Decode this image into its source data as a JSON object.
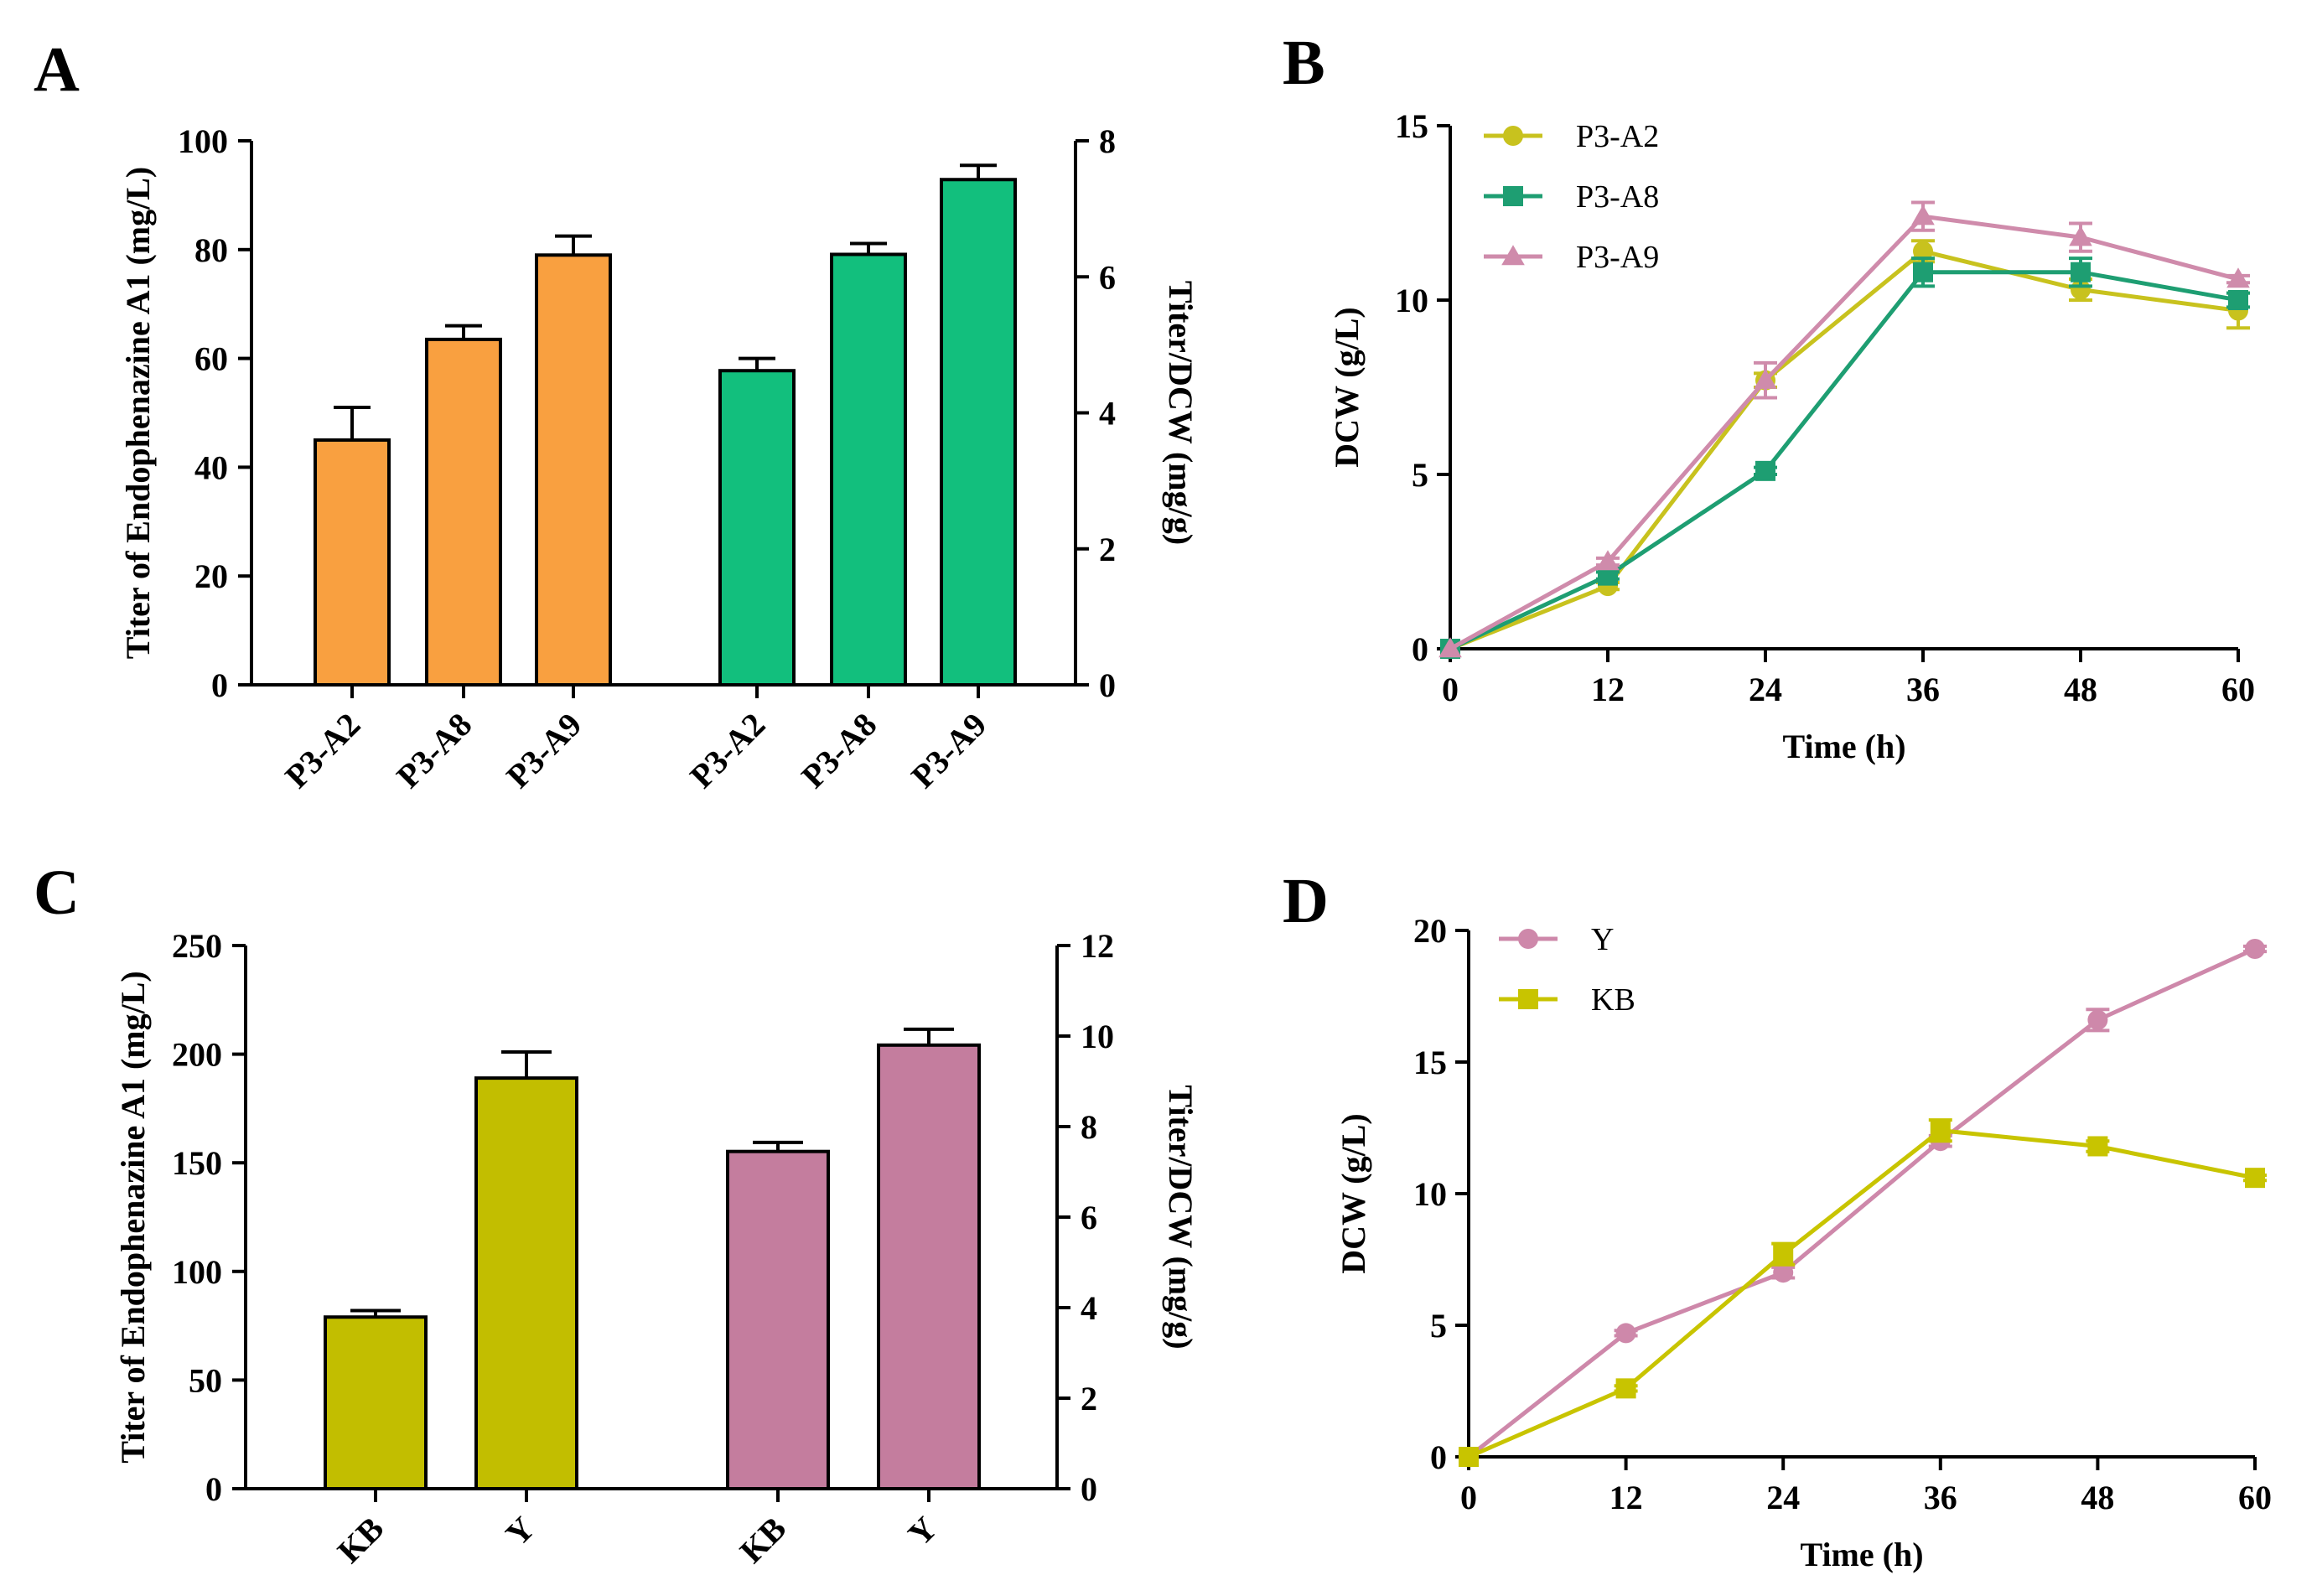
{
  "colors": {
    "orange": "#F9A040",
    "green": "#12BF7D",
    "olive": "#C2BE00",
    "mauve": "#C47D9E",
    "line_yellow": "#C8C21E",
    "line_green": "#1E9E72",
    "line_pink": "#CF8BAB",
    "d_pink": "#CE88AA",
    "d_yellow": "#C8C400"
  },
  "chart_data": [
    {
      "panel": "A",
      "type": "bar",
      "ylabel_left": "Titer of Endophenazine A1 (mg/L)",
      "ylabel_right": "Titer/DCW (mg/g)",
      "left_axis": {
        "range": [
          0,
          100
        ],
        "ticks": [
          "0",
          "20",
          "40",
          "60",
          "80",
          "100"
        ]
      },
      "right_axis": {
        "range": [
          0,
          8
        ],
        "ticks": [
          "0",
          "2",
          "4",
          "6",
          "8"
        ]
      },
      "series": [
        {
          "name": "Titer",
          "axis": "left",
          "color_key": "orange",
          "categories": [
            "P3-A2",
            "P3-A8",
            "P3-A9"
          ],
          "values": [
            45,
            63.5,
            79
          ],
          "errors": [
            6,
            2.5,
            3.5
          ]
        },
        {
          "name": "Titer/DCW",
          "axis": "right",
          "color_key": "green",
          "categories": [
            "P3-A2",
            "P3-A8",
            "P3-A9"
          ],
          "values": [
            4.62,
            6.33,
            7.43
          ],
          "errors": [
            0.18,
            0.16,
            0.21
          ]
        }
      ]
    },
    {
      "panel": "B",
      "type": "line",
      "xlabel": "Time (h)",
      "ylabel": "DCW (g/L)",
      "x_axis": {
        "range": [
          0,
          60
        ],
        "ticks": [
          "0",
          "12",
          "24",
          "36",
          "48",
          "60"
        ]
      },
      "y_axis": {
        "range": [
          0,
          15
        ],
        "ticks": [
          "0",
          "5",
          "10",
          "15"
        ]
      },
      "legend": "top-left",
      "x": [
        0,
        12,
        24,
        36,
        48,
        60
      ],
      "series": [
        {
          "name": "P3-A2",
          "marker": "circle",
          "color_key": "line_yellow",
          "values": [
            0,
            1.8,
            7.7,
            11.4,
            10.3,
            9.7
          ],
          "errors": [
            0,
            0.1,
            0.2,
            0.3,
            0.3,
            0.5
          ]
        },
        {
          "name": "P3-A8",
          "marker": "square",
          "color_key": "line_green",
          "values": [
            0,
            2.1,
            5.1,
            10.8,
            10.8,
            10.0
          ],
          "errors": [
            0,
            0.1,
            0.1,
            0.4,
            0.4,
            0.2
          ]
        },
        {
          "name": "P3-A9",
          "marker": "triangle",
          "color_key": "line_pink",
          "values": [
            0,
            2.5,
            7.7,
            12.4,
            11.8,
            10.6
          ],
          "errors": [
            0,
            0.1,
            0.5,
            0.4,
            0.4,
            0.1
          ]
        }
      ]
    },
    {
      "panel": "C",
      "type": "bar",
      "ylabel_left": "Titer of Endophenazine A1 (mg/L)",
      "ylabel_right": "Titer/DCW (mg/g)",
      "left_axis": {
        "range": [
          0,
          250
        ],
        "ticks": [
          "0",
          "50",
          "100",
          "150",
          "200",
          "250"
        ]
      },
      "right_axis": {
        "range": [
          0,
          12
        ],
        "ticks": [
          "0",
          "2",
          "4",
          "6",
          "8",
          "10",
          "12"
        ]
      },
      "series": [
        {
          "name": "Titer",
          "axis": "left",
          "color_key": "olive",
          "categories": [
            "KB",
            "Y"
          ],
          "values": [
            79,
            189
          ],
          "errors": [
            3,
            12
          ]
        },
        {
          "name": "Titer/DCW",
          "axis": "right",
          "color_key": "mauve",
          "categories": [
            "KB",
            "Y"
          ],
          "values": [
            7.45,
            9.8
          ],
          "errors": [
            0.2,
            0.35
          ]
        }
      ]
    },
    {
      "panel": "D",
      "type": "line",
      "xlabel": "Time (h)",
      "ylabel": "DCW (g/L)",
      "x_axis": {
        "range": [
          0,
          60
        ],
        "ticks": [
          "0",
          "12",
          "24",
          "36",
          "48",
          "60"
        ]
      },
      "y_axis": {
        "range": [
          0,
          20
        ],
        "ticks": [
          "0",
          "5",
          "10",
          "15",
          "20"
        ]
      },
      "legend": "top-left",
      "x": [
        0,
        12,
        24,
        36,
        48,
        60
      ],
      "series": [
        {
          "name": "Y",
          "marker": "circle",
          "color_key": "d_pink",
          "values": [
            0,
            4.7,
            7.0,
            12.0,
            16.6,
            19.3
          ],
          "errors": [
            0,
            0.1,
            0.2,
            0.2,
            0.4,
            0.1
          ]
        },
        {
          "name": "KB",
          "marker": "square",
          "color_key": "d_yellow",
          "values": [
            0,
            2.6,
            7.7,
            12.4,
            11.8,
            10.6
          ],
          "errors": [
            0,
            0.1,
            0.4,
            0.4,
            0.2,
            0.1
          ]
        }
      ]
    }
  ]
}
